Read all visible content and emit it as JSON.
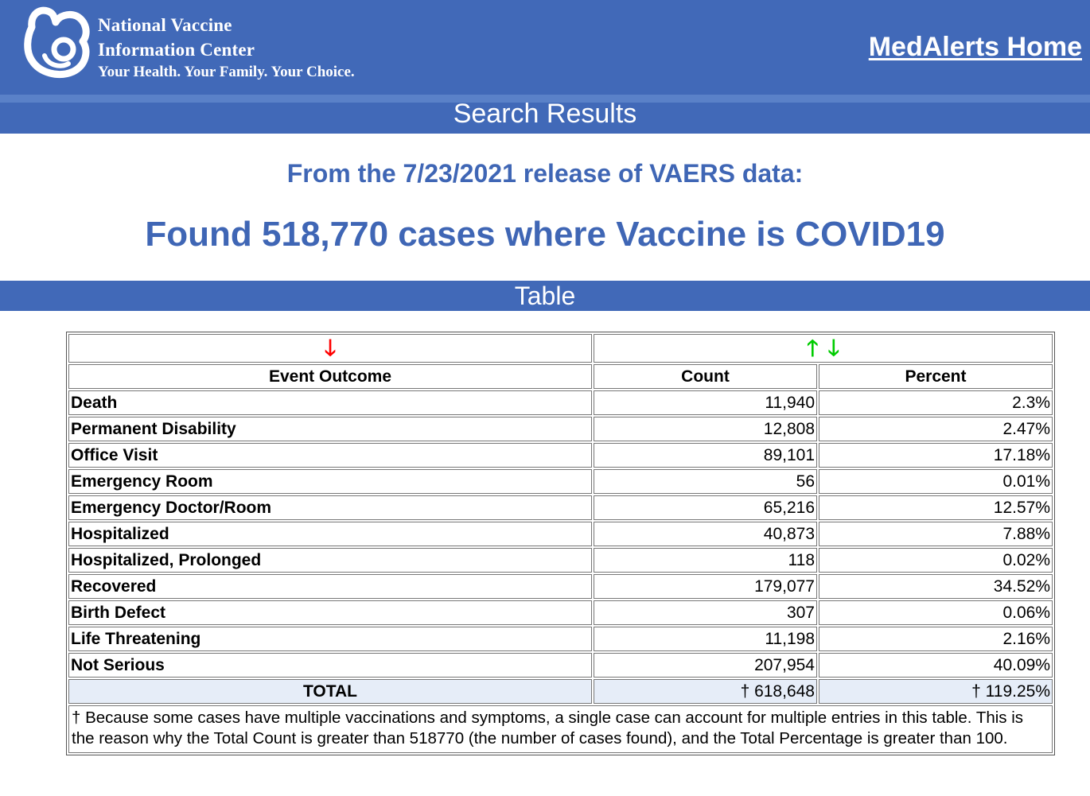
{
  "header": {
    "org_line1": "National Vaccine",
    "org_line2": "Information Center",
    "tagline": "Your Health. Your Family. Your Choice.",
    "home_link": "MedAlerts Home",
    "logo_icon": "nvic-logo-icon"
  },
  "sections": {
    "search_results": "Search Results",
    "table": "Table"
  },
  "summary": {
    "release": "From the 7/23/2021 release of VAERS data:",
    "found": "Found 518,770 cases where Vaccine is COVID19"
  },
  "table": {
    "sort_arrows": {
      "outcome_down": "🡓",
      "count_up": "🡑",
      "count_down": "🡓",
      "colors": {
        "red": "#ff0000",
        "green": "#00cc00"
      }
    },
    "columns": [
      "Event Outcome",
      "Count",
      "Percent"
    ],
    "rows": [
      {
        "outcome": "Death",
        "count": "11,940",
        "percent": "2.3%"
      },
      {
        "outcome": "Permanent Disability",
        "count": "12,808",
        "percent": "2.47%"
      },
      {
        "outcome": "Office Visit",
        "count": "89,101",
        "percent": "17.18%"
      },
      {
        "outcome": "Emergency Room",
        "count": "56",
        "percent": "0.01%"
      },
      {
        "outcome": "Emergency Doctor/Room",
        "count": "65,216",
        "percent": "12.57%"
      },
      {
        "outcome": "Hospitalized",
        "count": "40,873",
        "percent": "7.88%"
      },
      {
        "outcome": "Hospitalized, Prolonged",
        "count": "118",
        "percent": "0.02%"
      },
      {
        "outcome": "Recovered",
        "count": "179,077",
        "percent": "34.52%"
      },
      {
        "outcome": "Birth Defect",
        "count": "307",
        "percent": "0.06%"
      },
      {
        "outcome": "Life Threatening",
        "count": "11,198",
        "percent": "2.16%"
      },
      {
        "outcome": "Not Serious",
        "count": "207,954",
        "percent": "40.09%"
      }
    ],
    "total": {
      "label": "TOTAL",
      "count": "† 618,648",
      "percent": "† 119.25%"
    },
    "footnote": "† Because some cases have multiple vaccinations and symptoms, a single case can account for multiple entries in this table. This is the reason why the Total Count is greater than 518770 (the number of cases found), and the Total Percentage is greater than 100."
  },
  "colors": {
    "header_bg": "#4169b8",
    "heading_text": "#3f66b5",
    "total_row_bg": "#e6edf8"
  }
}
